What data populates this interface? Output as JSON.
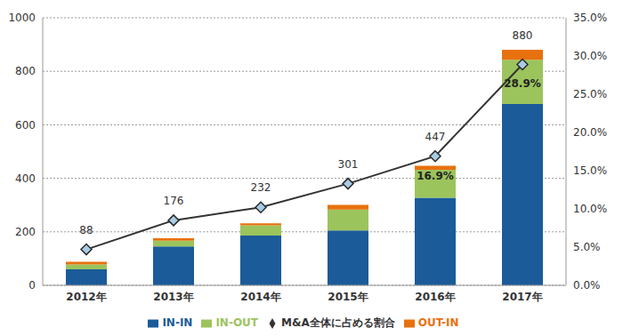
{
  "chart_data": {
    "type": "bar",
    "stacked": true,
    "grid": true,
    "legend": "bottom",
    "categories": [
      "2012年",
      "2013年",
      "2014年",
      "2015年",
      "2016年",
      "2017年"
    ],
    "series": [
      {
        "name": "IN-IN",
        "color": "#1b5b99",
        "values": [
          60,
          145,
          186,
          205,
          327,
          678
        ]
      },
      {
        "name": "IN-OUT",
        "color": "#9cc45c",
        "values": [
          18,
          22,
          38,
          78,
          105,
          165
        ]
      },
      {
        "name": "OUT-IN",
        "color": "#e8710f",
        "values": [
          10,
          9,
          8,
          18,
          15,
          37
        ]
      },
      {
        "name": "M&A全体に占める割合",
        "type": "line",
        "axis": "y2",
        "color": "#333333",
        "marker": "diamond",
        "values": [
          4.7,
          8.5,
          10.2,
          13.3,
          16.9,
          28.9
        ],
        "value_labels": [
          null,
          null,
          null,
          null,
          "16.9%",
          "28.9%"
        ]
      }
    ],
    "totals": [
      88,
      176,
      232,
      301,
      447,
      880
    ],
    "ylim": [
      0,
      1000
    ],
    "yticks": [
      0,
      200,
      400,
      600,
      800,
      1000
    ],
    "y2lim": [
      0,
      35
    ],
    "y2ticks": [
      {
        "value": 0,
        "label": "0.0%"
      },
      {
        "value": 5,
        "label": "5.0%"
      },
      {
        "value": 10,
        "label": "10.0%"
      },
      {
        "value": 15,
        "label": "15.0%"
      },
      {
        "value": 20,
        "label": "20.0%"
      },
      {
        "value": 25,
        "label": "25.0%"
      },
      {
        "value": 30,
        "label": "30.0%"
      },
      {
        "value": 35,
        "label": "35.0%"
      }
    ]
  }
}
